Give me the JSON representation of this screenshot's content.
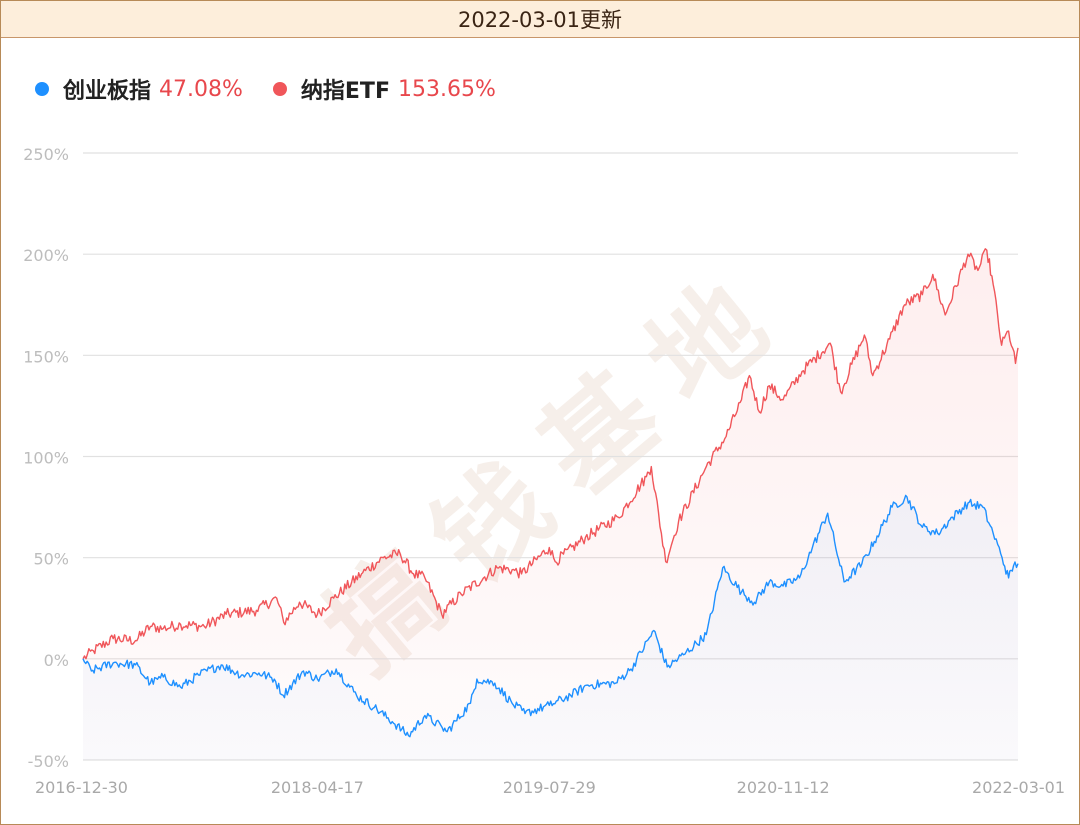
{
  "header": {
    "title": "2022-03-01更新"
  },
  "watermark": {
    "text": "搞钱基地"
  },
  "legend": [
    {
      "name": "创业板指",
      "value": "47.08%",
      "color": "#1e90ff"
    },
    {
      "name": "纳指ETF",
      "value": "153.65%",
      "color": "#f0565a"
    }
  ],
  "chart_data": {
    "type": "line",
    "y_ticks": [
      "250%",
      "200%",
      "150%",
      "100%",
      "50%",
      "0%",
      "-50%"
    ],
    "x_ticks": [
      "2016-12-30",
      "2018-04-17",
      "2019-07-29",
      "2020-11-12",
      "2022-03-01"
    ],
    "ylim": [
      -50,
      250
    ],
    "xlim": [
      "2016-12-30",
      "2022-03-01"
    ],
    "grid": true,
    "legend_position": "top-left",
    "series": [
      {
        "name": "创业板指",
        "color": "#1e90ff",
        "points": [
          [
            "2016-12-30",
            0
          ],
          [
            "2017-01-16",
            -6
          ],
          [
            "2017-03-01",
            -2
          ],
          [
            "2017-04-15",
            -3
          ],
          [
            "2017-05-15",
            -12
          ],
          [
            "2017-06-10",
            -9
          ],
          [
            "2017-07-15",
            -14
          ],
          [
            "2017-08-20",
            -8
          ],
          [
            "2017-10-05",
            -3
          ],
          [
            "2017-11-15",
            -8
          ],
          [
            "2017-12-20",
            -7
          ],
          [
            "2018-01-20",
            -10
          ],
          [
            "2018-02-07",
            -18
          ],
          [
            "2018-03-20",
            -6
          ],
          [
            "2018-04-17",
            -10
          ],
          [
            "2018-05-25",
            -5
          ],
          [
            "2018-07-05",
            -18
          ],
          [
            "2018-08-10",
            -24
          ],
          [
            "2018-09-15",
            -31
          ],
          [
            "2018-10-18",
            -38
          ],
          [
            "2018-11-20",
            -28
          ],
          [
            "2018-12-25",
            -34
          ],
          [
            "2019-01-04",
            -36
          ],
          [
            "2019-02-20",
            -22
          ],
          [
            "2019-03-05",
            -10
          ],
          [
            "2019-04-10",
            -12
          ],
          [
            "2019-05-15",
            -22
          ],
          [
            "2019-06-10",
            -27
          ],
          [
            "2019-07-29",
            -23
          ],
          [
            "2019-09-10",
            -18
          ],
          [
            "2019-10-15",
            -13
          ],
          [
            "2019-12-10",
            -12
          ],
          [
            "2020-01-10",
            -5
          ],
          [
            "2020-02-25",
            14
          ],
          [
            "2020-03-23",
            -4
          ],
          [
            "2020-04-25",
            2
          ],
          [
            "2020-06-10",
            12
          ],
          [
            "2020-07-13",
            45
          ],
          [
            "2020-08-20",
            33
          ],
          [
            "2020-09-15",
            28
          ],
          [
            "2020-10-15",
            38
          ],
          [
            "2020-11-12",
            36
          ],
          [
            "2020-12-15",
            40
          ],
          [
            "2021-01-10",
            55
          ],
          [
            "2021-02-10",
            72
          ],
          [
            "2021-03-15",
            38
          ],
          [
            "2021-04-20",
            47
          ],
          [
            "2021-05-15",
            58
          ],
          [
            "2021-06-20",
            75
          ],
          [
            "2021-07-20",
            80
          ],
          [
            "2021-08-20",
            65
          ],
          [
            "2021-09-20",
            62
          ],
          [
            "2021-10-20",
            70
          ],
          [
            "2021-11-20",
            77
          ],
          [
            "2021-12-20",
            75
          ],
          [
            "2022-01-10",
            62
          ],
          [
            "2022-01-28",
            50
          ],
          [
            "2022-02-10",
            40
          ],
          [
            "2022-02-20",
            46
          ],
          [
            "2022-03-01",
            47.08
          ]
        ]
      },
      {
        "name": "纳指ETF",
        "color": "#f0565a",
        "points": [
          [
            "2016-12-30",
            0
          ],
          [
            "2017-01-20",
            4
          ],
          [
            "2017-03-01",
            10
          ],
          [
            "2017-04-15",
            9
          ],
          [
            "2017-05-15",
            16
          ],
          [
            "2017-06-10",
            15
          ],
          [
            "2017-07-15",
            17
          ],
          [
            "2017-09-01",
            16
          ],
          [
            "2017-10-15",
            22
          ],
          [
            "2017-12-15",
            24
          ],
          [
            "2018-01-25",
            30
          ],
          [
            "2018-02-08",
            18
          ],
          [
            "2018-03-12",
            28
          ],
          [
            "2018-04-17",
            22
          ],
          [
            "2018-05-20",
            30
          ],
          [
            "2018-07-15",
            42
          ],
          [
            "2018-08-28",
            50
          ],
          [
            "2018-10-01",
            52
          ],
          [
            "2018-10-28",
            42
          ],
          [
            "2018-11-20",
            40
          ],
          [
            "2018-12-24",
            22
          ],
          [
            "2019-02-01",
            32
          ],
          [
            "2019-04-15",
            45
          ],
          [
            "2019-05-15",
            44
          ],
          [
            "2019-06-03",
            42
          ],
          [
            "2019-07-29",
            55
          ],
          [
            "2019-08-10",
            48
          ],
          [
            "2019-10-10",
            60
          ],
          [
            "2019-12-15",
            70
          ],
          [
            "2020-02-10",
            90
          ],
          [
            "2020-02-20",
            95
          ],
          [
            "2020-03-20",
            48
          ],
          [
            "2020-04-15",
            68
          ],
          [
            "2020-06-10",
            95
          ],
          [
            "2020-07-20",
            110
          ],
          [
            "2020-08-20",
            128
          ],
          [
            "2020-09-05",
            140
          ],
          [
            "2020-09-25",
            122
          ],
          [
            "2020-10-15",
            135
          ],
          [
            "2020-11-12",
            128
          ],
          [
            "2020-12-20",
            142
          ],
          [
            "2021-02-15",
            156
          ],
          [
            "2021-03-08",
            132
          ],
          [
            "2021-04-25",
            160
          ],
          [
            "2021-05-12",
            140
          ],
          [
            "2021-06-15",
            158
          ],
          [
            "2021-07-15",
            175
          ],
          [
            "2021-08-20",
            180
          ],
          [
            "2021-09-10",
            190
          ],
          [
            "2021-10-05",
            170
          ],
          [
            "2021-11-20",
            200
          ],
          [
            "2021-12-10",
            192
          ],
          [
            "2021-12-28",
            202
          ],
          [
            "2022-01-10",
            185
          ],
          [
            "2022-01-27",
            155
          ],
          [
            "2022-02-10",
            162
          ],
          [
            "2022-02-24",
            146
          ],
          [
            "2022-03-01",
            153.65
          ]
        ]
      }
    ]
  }
}
